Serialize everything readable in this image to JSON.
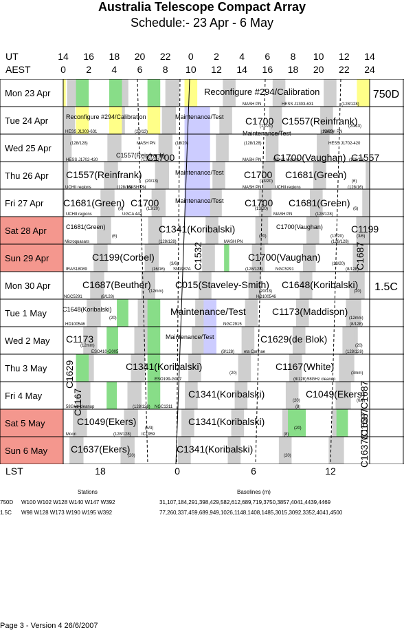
{
  "header": {
    "title": "Australia Telescope Compact Array",
    "subtitle": "Schedule:- 23 Apr - 6  May"
  },
  "axes": {
    "ut_label": "UT",
    "aest_label": "AEST",
    "lst_label": "LST",
    "ut_ticks": [
      "14",
      "16",
      "18",
      "20",
      "22",
      "0",
      "2",
      "4",
      "6",
      "8",
      "10",
      "12",
      "14"
    ],
    "aest_ticks": [
      "0",
      "2",
      "4",
      "6",
      "8",
      "10",
      "12",
      "14",
      "16",
      "18",
      "20",
      "22",
      "24"
    ],
    "lst_ticks": [
      "18",
      "0",
      "6",
      "12"
    ]
  },
  "days": [
    {
      "label": "Mon  23 Apr",
      "weekend": false
    },
    {
      "label": "Tue  24 Apr",
      "weekend": false
    },
    {
      "label": "Wed  25 Apr",
      "weekend": false
    },
    {
      "label": "Thu  26 Apr",
      "weekend": false
    },
    {
      "label": "Fri   27 Apr",
      "weekend": false
    },
    {
      "label": "Sat  28 Apr",
      "weekend": true
    },
    {
      "label": "Sun  29 Apr",
      "weekend": true
    },
    {
      "label": "Mon  30 Apr",
      "weekend": false
    },
    {
      "label": "Tue   1  May",
      "weekend": false
    },
    {
      "label": "Wed  2  May",
      "weekend": false
    },
    {
      "label": "Thu  3  May",
      "weekend": false
    },
    {
      "label": "Fri   4  May",
      "weekend": false
    },
    {
      "label": "Sat  5  May",
      "weekend": true
    },
    {
      "label": "Sun  6  May",
      "weekend": true
    }
  ],
  "configs": [
    {
      "label": "750D",
      "row": 0
    },
    {
      "label": "1.5C",
      "row": 7
    }
  ],
  "blocks": [
    {
      "row": 0,
      "text": "Reconfigure #294/Calibration",
      "cls": "mid"
    },
    {
      "row": 1,
      "text": "Reconfigure #294/Calibration",
      "cls": "tiny2"
    },
    {
      "row": 1,
      "text": "Maintenance/Test",
      "cls": "tiny2"
    },
    {
      "row": 1,
      "text": "MASH PN",
      "cls": "tiny"
    },
    {
      "row": 1,
      "text": "C1700",
      "cls": "big"
    },
    {
      "row": 1,
      "text": "(13/20)",
      "cls": "tiny"
    },
    {
      "row": 1,
      "text": "HESS J1303-631",
      "cls": "tiny"
    },
    {
      "row": 1,
      "text": "(128/128)",
      "cls": "tiny"
    },
    {
      "row": 1,
      "text": "C1557(Reinfrank)",
      "cls": "big"
    },
    {
      "row": 1,
      "text": "(20/13)",
      "cls": "tiny"
    },
    {
      "row": 2,
      "text": "HESS J1303-631",
      "cls": "tiny"
    },
    {
      "row": 2,
      "text": "(128/128)",
      "cls": "tiny"
    },
    {
      "row": 2,
      "text": "C1557(Reinfrank)",
      "cls": "tiny2"
    },
    {
      "row": 2,
      "text": "(20/13)",
      "cls": "tiny"
    },
    {
      "row": 2,
      "text": "MASH PN",
      "cls": "tiny"
    },
    {
      "row": 2,
      "text": "C1700",
      "cls": "big"
    },
    {
      "row": 2,
      "text": "(13/20)",
      "cls": "tiny"
    },
    {
      "row": 2,
      "text": "Maintenance/Test",
      "cls": "tiny2"
    },
    {
      "row": 2,
      "text": "MASH PN",
      "cls": "tiny"
    },
    {
      "row": 2,
      "text": "(128/128)",
      "cls": "tiny"
    },
    {
      "row": 2,
      "text": "C1700(Vaughan)",
      "cls": "big"
    },
    {
      "row": 2,
      "text": "(13/20)",
      "cls": "tiny"
    },
    {
      "row": 2,
      "text": "HESS J1702-420",
      "cls": "tiny"
    },
    {
      "row": 2,
      "text": "C1557",
      "cls": "big"
    },
    {
      "row": 2,
      "text": "(20/13)",
      "cls": "tiny"
    },
    {
      "row": 3,
      "text": "HESS J1702-420",
      "cls": "tiny"
    },
    {
      "row": 3,
      "text": "(128/128)",
      "cls": "tiny"
    },
    {
      "row": 3,
      "text": "C1557(Reinfrank)",
      "cls": "big"
    },
    {
      "row": 3,
      "text": "(20/13)",
      "cls": "tiny"
    },
    {
      "row": 3,
      "text": "Maintenance/Test",
      "cls": "tiny2"
    },
    {
      "row": 3,
      "text": "MASH PN",
      "cls": "tiny"
    },
    {
      "row": 3,
      "text": "C1700",
      "cls": "big"
    },
    {
      "row": 3,
      "text": "(13/20)",
      "cls": "tiny"
    },
    {
      "row": 3,
      "text": "UCHII regions",
      "cls": "tiny"
    },
    {
      "row": 3,
      "text": "(128/16)",
      "cls": "tiny"
    },
    {
      "row": 3,
      "text": "C1681(Green)",
      "cls": "big"
    },
    {
      "row": 3,
      "text": "(6)",
      "cls": "tiny"
    },
    {
      "row": 4,
      "text": "UCHII regions",
      "cls": "tiny"
    },
    {
      "row": 4,
      "text": "(128/16)",
      "cls": "tiny"
    },
    {
      "row": 4,
      "text": "C1681(Green)",
      "cls": "big"
    },
    {
      "row": 4,
      "text": "(6)",
      "cls": "tiny"
    },
    {
      "row": 4,
      "text": "MASH PN",
      "cls": "tiny"
    },
    {
      "row": 4,
      "text": "C1700",
      "cls": "big"
    },
    {
      "row": 4,
      "text": "(13/20)",
      "cls": "tiny"
    },
    {
      "row": 4,
      "text": "Maintenance/Test",
      "cls": "tiny2"
    },
    {
      "row": 4,
      "text": "MASH PN",
      "cls": "tiny"
    },
    {
      "row": 4,
      "text": "C1700",
      "cls": "big"
    },
    {
      "row": 4,
      "text": "(13/20)",
      "cls": "tiny"
    },
    {
      "row": 4,
      "text": "UCHII regions",
      "cls": "tiny"
    },
    {
      "row": 4,
      "text": "(128/16)",
      "cls": "tiny"
    },
    {
      "row": 4,
      "text": "C1681(Green)",
      "cls": "big"
    },
    {
      "row": 4,
      "text": "(6)",
      "cls": "tiny"
    },
    {
      "row": 5,
      "text": "UCHII regions",
      "cls": "tiny"
    },
    {
      "row": 5,
      "text": "C1681(Green)",
      "cls": "tiny2"
    },
    {
      "row": 5,
      "text": "(6)",
      "cls": "tiny"
    },
    {
      "row": 5,
      "text": "UGCA 442",
      "cls": "tiny"
    },
    {
      "row": 5,
      "text": "C1341(Koribalski)",
      "cls": "big"
    },
    {
      "row": 5,
      "text": "(20)",
      "cls": "tiny"
    },
    {
      "row": 5,
      "text": "MASH PN",
      "cls": "tiny"
    },
    {
      "row": 5,
      "text": "(128/128)",
      "cls": "tiny"
    },
    {
      "row": 5,
      "text": "C1700(Vaughan)",
      "cls": "tiny2"
    },
    {
      "row": 5,
      "text": "(13/20)",
      "cls": "tiny"
    },
    {
      "row": 5,
      "text": "C1199",
      "cls": "big"
    },
    {
      "row": 5,
      "text": "(3/6)",
      "cls": "tiny"
    },
    {
      "row": 6,
      "text": "Microquasars",
      "cls": "tiny"
    },
    {
      "row": 6,
      "text": "(128/128)",
      "cls": "tiny"
    },
    {
      "row": 6,
      "text": "C1199(Corbel)",
      "cls": "big"
    },
    {
      "row": 6,
      "text": "(3/6)",
      "cls": "tiny"
    },
    {
      "row": 6,
      "text": "C1532",
      "cls": "big"
    },
    {
      "row": 6,
      "text": "MASH PN",
      "cls": "tiny"
    },
    {
      "row": 6,
      "text": "(128/128)",
      "cls": "tiny"
    },
    {
      "row": 6,
      "text": "C1700(Vaughan)",
      "cls": "big"
    },
    {
      "row": 6,
      "text": "(13/20)",
      "cls": "tiny"
    },
    {
      "row": 6,
      "text": "C1687",
      "cls": "big"
    },
    {
      "row": 7,
      "text": "IRAS18089",
      "cls": "tiny"
    },
    {
      "row": 7,
      "text": "(16/16)",
      "cls": "tiny"
    },
    {
      "row": 7,
      "text": "C1687(Beuther)",
      "cls": "big"
    },
    {
      "row": 7,
      "text": "(12mm)",
      "cls": "tiny"
    },
    {
      "row": 7,
      "text": "SN1987A",
      "cls": "tiny"
    },
    {
      "row": 7,
      "text": "(128/128)",
      "cls": "tiny"
    },
    {
      "row": 7,
      "text": "C015(Staveley-Smith)",
      "cls": "big"
    },
    {
      "row": 7,
      "text": "(20/13)",
      "cls": "tiny"
    },
    {
      "row": 7,
      "text": "NGC5291",
      "cls": "tiny"
    },
    {
      "row": 7,
      "text": "(8/128)",
      "cls": "tiny"
    },
    {
      "row": 7,
      "text": "C1648(Koribalski)",
      "cls": "big"
    },
    {
      "row": 7,
      "text": "(20)",
      "cls": "tiny"
    },
    {
      "row": 8,
      "text": "NGC5291",
      "cls": "tiny"
    },
    {
      "row": 8,
      "text": "(8/128)",
      "cls": "tiny"
    },
    {
      "row": 8,
      "text": "C1648(Koribalski)",
      "cls": "tiny2"
    },
    {
      "row": 8,
      "text": "(20)",
      "cls": "tiny"
    },
    {
      "row": 8,
      "text": "Maintenance/Test",
      "cls": "big"
    },
    {
      "row": 8,
      "text": "HD100546",
      "cls": "tiny"
    },
    {
      "row": 8,
      "text": "C1173(Maddison)",
      "cls": "big"
    },
    {
      "row": 8,
      "text": "(12mm)",
      "cls": "tiny"
    },
    {
      "row": 9,
      "text": "HD100546",
      "cls": "tiny"
    },
    {
      "row": 9,
      "text": "C1173",
      "cls": "big"
    },
    {
      "row": 9,
      "text": "(12mm)",
      "cls": "tiny"
    },
    {
      "row": 9,
      "text": "Maintenance/Test",
      "cls": "tiny2"
    },
    {
      "row": 9,
      "text": "NGC2915",
      "cls": "tiny"
    },
    {
      "row": 9,
      "text": "(8/128)",
      "cls": "tiny"
    },
    {
      "row": 9,
      "text": "C1629(de Blok)",
      "cls": "big"
    },
    {
      "row": 9,
      "text": "(20)",
      "cls": "tiny"
    },
    {
      "row": 10,
      "text": "C1629",
      "cls": "big"
    },
    {
      "row": 10,
      "text": "ESO410-G005",
      "cls": "tiny"
    },
    {
      "row": 10,
      "text": "(8/128)",
      "cls": "tiny"
    },
    {
      "row": 10,
      "text": "C1341(Koribalski)",
      "cls": "big"
    },
    {
      "row": 10,
      "text": "(20)",
      "cls": "tiny"
    },
    {
      "row": 10,
      "text": "eta Carinae",
      "cls": "tiny"
    },
    {
      "row": 10,
      "text": "(128/128)",
      "cls": "tiny"
    },
    {
      "row": 10,
      "text": "C1167(White)",
      "cls": "big"
    },
    {
      "row": 10,
      "text": "(3mm)",
      "cls": "tiny"
    },
    {
      "row": 11,
      "text": "C1167",
      "cls": "big"
    },
    {
      "row": 11,
      "text": "ESO199-G007",
      "cls": "tiny"
    },
    {
      "row": 11,
      "text": "(8/128)",
      "cls": "tiny"
    },
    {
      "row": 11,
      "text": "C1341(Koribalski)",
      "cls": "big"
    },
    {
      "row": 11,
      "text": "(20)",
      "cls": "tiny"
    },
    {
      "row": 11,
      "text": "58GHz cleanup",
      "cls": "tiny"
    },
    {
      "row": 11,
      "text": "C1049(Ekers)",
      "cls": "big"
    },
    {
      "row": 11,
      "text": "(6/3)",
      "cls": "tiny"
    },
    {
      "row": 12,
      "text": "58GHz cleanup",
      "cls": "tiny"
    },
    {
      "row": 12,
      "text": "(128/128)",
      "cls": "tiny"
    },
    {
      "row": 12,
      "text": "C1049(Ekers)",
      "cls": "big"
    },
    {
      "row": 12,
      "text": "(6/3)",
      "cls": "tiny"
    },
    {
      "row": 12,
      "text": "NGC1311",
      "cls": "tiny"
    },
    {
      "row": 12,
      "text": "(8)",
      "cls": "tiny"
    },
    {
      "row": 12,
      "text": "C1341(Koribalski)",
      "cls": "big"
    },
    {
      "row": 12,
      "text": "(20)",
      "cls": "tiny"
    },
    {
      "row": 12,
      "text": "C1637/C1687",
      "cls": "big"
    },
    {
      "row": 13,
      "text": "Moon",
      "cls": "tiny"
    },
    {
      "row": 13,
      "text": "(128/128)",
      "cls": "tiny"
    },
    {
      "row": 13,
      "text": "C1637(Ekers)",
      "cls": "big"
    },
    {
      "row": 13,
      "text": "(20)",
      "cls": "tiny"
    },
    {
      "row": 13,
      "text": "IC1959",
      "cls": "tiny"
    },
    {
      "row": 13,
      "text": "(8)",
      "cls": "tiny"
    },
    {
      "row": 13,
      "text": "C1341(Koribalski)",
      "cls": "big"
    },
    {
      "row": 13,
      "text": "(20)",
      "cls": "tiny"
    },
    {
      "row": 13,
      "text": "C1637/C1687",
      "cls": "big"
    }
  ],
  "footer": {
    "stations_title": "Stations",
    "baselines_title": "Baselines (m)",
    "rows": [
      {
        "config": "750D",
        "stations": "W100  W102  W128  W140  W147  W392",
        "baselines": "31,107,184,291,398,429,582,612,689,719,3750,3857,4041,4439,4469"
      },
      {
        "config": "1.5C",
        "stations": "W98  W128  W173  W190  W195  W392",
        "baselines": "77,260,337,459,689,949,1026,1148,1408,1485,3015,3092,3352,4041,4500"
      }
    ],
    "page": "Page 3 - Version 4  26/6/2007"
  }
}
